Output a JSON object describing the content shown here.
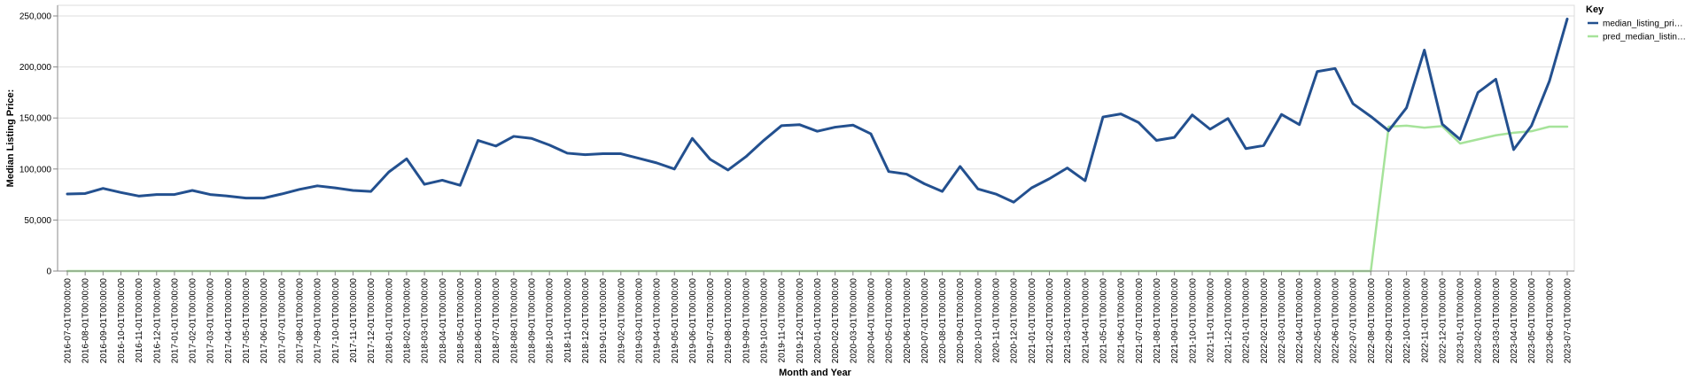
{
  "chart_data": {
    "type": "line",
    "xlabel": "Month and Year",
    "ylabel": "Median Listing Price:",
    "ylim": [
      0,
      250000
    ],
    "yticks": [
      "0",
      "50,000",
      "100,000",
      "150,000",
      "200,000",
      "250,000"
    ],
    "grid": true,
    "legend": {
      "title": "Key",
      "placement": "top-right"
    },
    "x": [
      "2016-07-01T00:00:00",
      "2016-08-01T00:00:00",
      "2016-09-01T00:00:00",
      "2016-10-01T00:00:00",
      "2016-11-01T00:00:00",
      "2016-12-01T00:00:00",
      "2017-01-01T00:00:00",
      "2017-02-01T00:00:00",
      "2017-03-01T00:00:00",
      "2017-04-01T00:00:00",
      "2017-05-01T00:00:00",
      "2017-06-01T00:00:00",
      "2017-07-01T00:00:00",
      "2017-08-01T00:00:00",
      "2017-09-01T00:00:00",
      "2017-10-01T00:00:00",
      "2017-11-01T00:00:00",
      "2017-12-01T00:00:00",
      "2018-01-01T00:00:00",
      "2018-02-01T00:00:00",
      "2018-03-01T00:00:00",
      "2018-04-01T00:00:00",
      "2018-05-01T00:00:00",
      "2018-06-01T00:00:00",
      "2018-07-01T00:00:00",
      "2018-08-01T00:00:00",
      "2018-09-01T00:00:00",
      "2018-10-01T00:00:00",
      "2018-11-01T00:00:00",
      "2018-12-01T00:00:00",
      "2019-01-01T00:00:00",
      "2019-02-01T00:00:00",
      "2019-03-01T00:00:00",
      "2019-04-01T00:00:00",
      "2019-05-01T00:00:00",
      "2019-06-01T00:00:00",
      "2019-07-01T00:00:00",
      "2019-08-01T00:00:00",
      "2019-09-01T00:00:00",
      "2019-10-01T00:00:00",
      "2019-11-01T00:00:00",
      "2019-12-01T00:00:00",
      "2020-01-01T00:00:00",
      "2020-02-01T00:00:00",
      "2020-03-01T00:00:00",
      "2020-04-01T00:00:00",
      "2020-05-01T00:00:00",
      "2020-06-01T00:00:00",
      "2020-07-01T00:00:00",
      "2020-08-01T00:00:00",
      "2020-09-01T00:00:00",
      "2020-10-01T00:00:00",
      "2020-11-01T00:00:00",
      "2020-12-01T00:00:00",
      "2021-01-01T00:00:00",
      "2021-02-01T00:00:00",
      "2021-03-01T00:00:00",
      "2021-04-01T00:00:00",
      "2021-05-01T00:00:00",
      "2021-06-01T00:00:00",
      "2021-07-01T00:00:00",
      "2021-08-01T00:00:00",
      "2021-09-01T00:00:00",
      "2021-10-01T00:00:00",
      "2021-11-01T00:00:00",
      "2021-12-01T00:00:00",
      "2022-01-01T00:00:00",
      "2022-02-01T00:00:00",
      "2022-03-01T00:00:00",
      "2022-04-01T00:00:00",
      "2022-05-01T00:00:00",
      "2022-06-01T00:00:00",
      "2022-07-01T00:00:00",
      "2022-08-01T00:00:00",
      "2022-09-01T00:00:00",
      "2022-10-01T00:00:00",
      "2022-11-01T00:00:00",
      "2022-12-01T00:00:00",
      "2023-01-01T00:00:00",
      "2023-02-01T00:00:00",
      "2023-03-01T00:00:00",
      "2023-04-01T00:00:00",
      "2023-05-01T00:00:00",
      "2023-06-01T00:00:00",
      "2023-07-01T00:00:00"
    ],
    "series": [
      {
        "name": "median_listing_pri…",
        "color": "#23508f",
        "values": [
          75500,
          76000,
          81000,
          77000,
          73500,
          75000,
          75000,
          79000,
          75000,
          73500,
          71500,
          71500,
          75500,
          80000,
          83500,
          81500,
          79000,
          78000,
          97000,
          110000,
          85000,
          89000,
          84000,
          128000,
          122500,
          132000,
          130000,
          123500,
          115500,
          114000,
          115000,
          115000,
          110500,
          106000,
          100000,
          130000,
          109500,
          99000,
          112000,
          128000,
          142500,
          143500,
          137000,
          141000,
          143000,
          134500,
          97500,
          95000,
          85500,
          78000,
          102500,
          80500,
          75500,
          67500,
          81500,
          90500,
          101000,
          88500,
          151000,
          154000,
          145500,
          128000,
          131000,
          153000,
          139000,
          149500,
          120000,
          123000,
          153500,
          143500,
          195500,
          198500,
          164000,
          151500,
          137500,
          160000,
          216500,
          144000,
          129000,
          175000,
          188000,
          119000,
          142500,
          186000,
          247000
        ]
      },
      {
        "name": "pred_median_listin…",
        "color": "#a6e39a",
        "values": [
          0,
          0,
          0,
          0,
          0,
          0,
          0,
          0,
          0,
          0,
          0,
          0,
          0,
          0,
          0,
          0,
          0,
          0,
          0,
          0,
          0,
          0,
          0,
          0,
          0,
          0,
          0,
          0,
          0,
          0,
          0,
          0,
          0,
          0,
          0,
          0,
          0,
          0,
          0,
          0,
          0,
          0,
          0,
          0,
          0,
          0,
          0,
          0,
          0,
          0,
          0,
          0,
          0,
          0,
          0,
          0,
          0,
          0,
          0,
          0,
          0,
          0,
          0,
          0,
          0,
          0,
          0,
          0,
          0,
          0,
          0,
          0,
          0,
          0,
          141500,
          142500,
          140500,
          142000,
          125000,
          129000,
          133000,
          135500,
          137000,
          141500,
          141500
        ]
      }
    ]
  }
}
